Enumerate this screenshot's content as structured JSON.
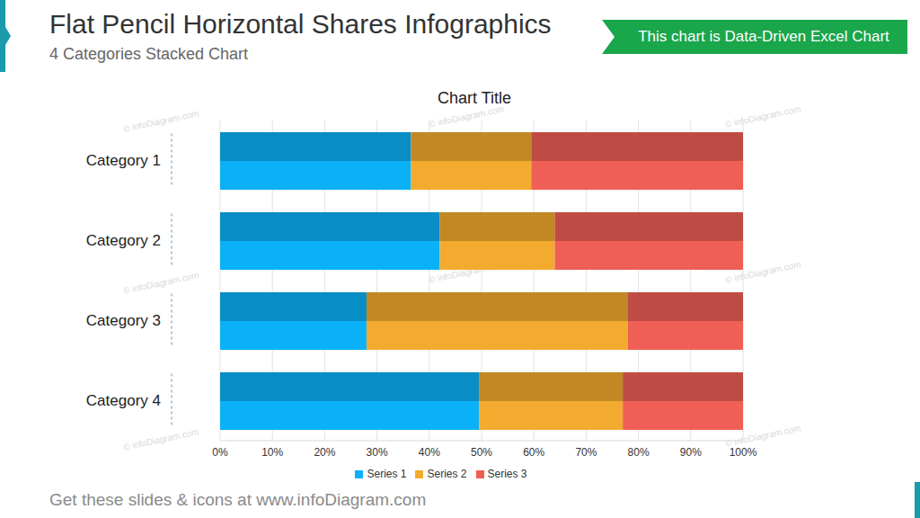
{
  "header": {
    "title": "Flat Pencil Horizontal Shares Infographics",
    "subtitle": "4 Categories Stacked Chart",
    "badge": "This chart is Data-Driven Excel Chart"
  },
  "footer": "Get these slides & icons at www.infoDiagram.com",
  "watermark": "© infoDiagram.com",
  "chart_data": {
    "type": "bar",
    "title": "Chart Title",
    "orientation": "horizontal",
    "stacked": true,
    "grid": true,
    "legend": "bottom",
    "categories": [
      "Category 1",
      "Category 2",
      "Category 3",
      "Category 4"
    ],
    "series": [
      {
        "name": "Series 1",
        "color": "#0bb1f7",
        "values": [
          36.5,
          42,
          28,
          49.5
        ]
      },
      {
        "name": "Series 2",
        "color": "#f2ab2e",
        "values": [
          23,
          22,
          50,
          27.5
        ]
      },
      {
        "name": "Series 3",
        "color": "#ef5f55",
        "values": [
          40.5,
          36,
          22,
          23
        ]
      }
    ],
    "xlim": [
      0,
      100
    ],
    "xticks": [
      {
        "value": 0,
        "label": "0%"
      },
      {
        "value": 10,
        "label": "10%"
      },
      {
        "value": 20,
        "label": "20%"
      },
      {
        "value": 30,
        "label": "30%"
      },
      {
        "value": 40,
        "label": "40%"
      },
      {
        "value": 50,
        "label": "50%"
      },
      {
        "value": 60,
        "label": "60%"
      },
      {
        "value": 70,
        "label": "70%"
      },
      {
        "value": 80,
        "label": "80%"
      },
      {
        "value": 90,
        "label": "90%"
      },
      {
        "value": 100,
        "label": "100%"
      }
    ]
  }
}
